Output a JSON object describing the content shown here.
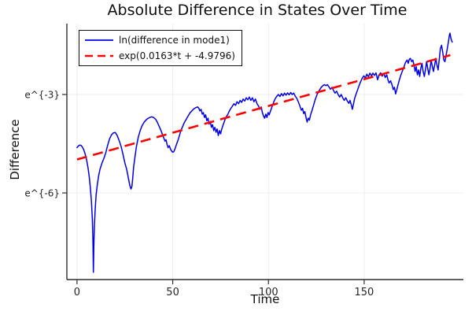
{
  "chart_data": {
    "type": "line",
    "title": "Absolute Difference in States Over Time",
    "xlabel": "Time",
    "ylabel": "Difference",
    "xlim": [
      -5.3,
      201.8
    ],
    "ylim": [
      -8.64,
      -0.84
    ],
    "x_ticks": [
      {
        "value": 0,
        "label": "0"
      },
      {
        "value": 50,
        "label": "50"
      },
      {
        "value": 100,
        "label": "100"
      },
      {
        "value": 150,
        "label": "150"
      }
    ],
    "y_ticks": [
      {
        "value": -3,
        "label": "e^{-3}"
      },
      {
        "value": -6,
        "label": "e^{-6}"
      }
    ],
    "grid": true,
    "legend_position": "top-left",
    "colors": {
      "grid": "#ededed",
      "axis": "#2f2f2f",
      "text": "#262626"
    },
    "series": [
      {
        "name": "ln(difference in mode1)",
        "color": "#0000ee",
        "style": "solid",
        "points": [
          [
            0,
            -4.62
          ],
          [
            0.7,
            -4.57
          ],
          [
            1.4,
            -4.54
          ],
          [
            2.1,
            -4.55
          ],
          [
            2.8,
            -4.6
          ],
          [
            3.5,
            -4.68
          ],
          [
            4.2,
            -4.8
          ],
          [
            5,
            -5.0
          ],
          [
            5.7,
            -5.22
          ],
          [
            6.4,
            -5.52
          ],
          [
            7,
            -5.85
          ],
          [
            7.5,
            -6.25
          ],
          [
            8,
            -6.8
          ],
          [
            8.3,
            -7.4
          ],
          [
            8.55,
            -8.42
          ],
          [
            8.8,
            -7.6
          ],
          [
            9.1,
            -7.0
          ],
          [
            9.5,
            -6.5
          ],
          [
            10,
            -6.05
          ],
          [
            10.6,
            -5.75
          ],
          [
            11.2,
            -5.5
          ],
          [
            12,
            -5.28
          ],
          [
            13,
            -5.1
          ],
          [
            14,
            -4.95
          ],
          [
            15,
            -4.78
          ],
          [
            16,
            -4.55
          ],
          [
            17,
            -4.35
          ],
          [
            18,
            -4.23
          ],
          [
            19,
            -4.17
          ],
          [
            20,
            -4.16
          ],
          [
            21,
            -4.25
          ],
          [
            22,
            -4.4
          ],
          [
            23,
            -4.58
          ],
          [
            24,
            -4.82
          ],
          [
            25,
            -5.08
          ],
          [
            26,
            -5.3
          ],
          [
            27,
            -5.6
          ],
          [
            27.6,
            -5.78
          ],
          [
            28.2,
            -5.88
          ],
          [
            28.7,
            -5.8
          ],
          [
            29.1,
            -5.55
          ],
          [
            29.6,
            -5.2
          ],
          [
            30.3,
            -4.9
          ],
          [
            31,
            -4.6
          ],
          [
            32,
            -4.3
          ],
          [
            33,
            -4.1
          ],
          [
            34,
            -3.95
          ],
          [
            35,
            -3.85
          ],
          [
            36,
            -3.78
          ],
          [
            37,
            -3.73
          ],
          [
            38,
            -3.7
          ],
          [
            39,
            -3.68
          ],
          [
            40,
            -3.7
          ],
          [
            41,
            -3.75
          ],
          [
            42,
            -3.85
          ],
          [
            43,
            -3.98
          ],
          [
            44,
            -4.12
          ],
          [
            45,
            -4.28
          ],
          [
            46,
            -4.42
          ],
          [
            46.5,
            -4.38
          ],
          [
            47,
            -4.52
          ],
          [
            47.6,
            -4.62
          ],
          [
            48.2,
            -4.56
          ],
          [
            48.8,
            -4.66
          ],
          [
            49.4,
            -4.72
          ],
          [
            50,
            -4.76
          ],
          [
            50.6,
            -4.74
          ],
          [
            51.2,
            -4.65
          ],
          [
            52,
            -4.52
          ],
          [
            53,
            -4.35
          ],
          [
            54,
            -4.15
          ],
          [
            55,
            -4.0
          ],
          [
            56,
            -3.86
          ],
          [
            57,
            -3.76
          ],
          [
            58,
            -3.66
          ],
          [
            59,
            -3.56
          ],
          [
            60,
            -3.5
          ],
          [
            61,
            -3.44
          ],
          [
            62,
            -3.4
          ],
          [
            63,
            -3.38
          ],
          [
            63.6,
            -3.42
          ],
          [
            64.2,
            -3.5
          ],
          [
            64.8,
            -3.45
          ],
          [
            65.4,
            -3.6
          ],
          [
            66,
            -3.55
          ],
          [
            66.6,
            -3.7
          ],
          [
            67.2,
            -3.62
          ],
          [
            67.8,
            -3.8
          ],
          [
            68.4,
            -3.72
          ],
          [
            69,
            -3.9
          ],
          [
            69.6,
            -3.82
          ],
          [
            70.2,
            -4.0
          ],
          [
            70.8,
            -3.92
          ],
          [
            71.4,
            -4.1
          ],
          [
            72,
            -4.0
          ],
          [
            72.6,
            -4.15
          ],
          [
            73.2,
            -4.05
          ],
          [
            73.8,
            -4.25
          ],
          [
            74.4,
            -4.1
          ],
          [
            75,
            -4.2
          ],
          [
            75.6,
            -4.05
          ],
          [
            76.2,
            -3.95
          ],
          [
            76.8,
            -3.85
          ],
          [
            77.4,
            -3.75
          ],
          [
            78,
            -3.68
          ],
          [
            78.8,
            -3.6
          ],
          [
            79.6,
            -3.5
          ],
          [
            80.4,
            -3.42
          ],
          [
            81.2,
            -3.35
          ],
          [
            82,
            -3.28
          ],
          [
            82.8,
            -3.33
          ],
          [
            83.6,
            -3.22
          ],
          [
            84.4,
            -3.28
          ],
          [
            85.2,
            -3.18
          ],
          [
            86,
            -3.24
          ],
          [
            86.8,
            -3.14
          ],
          [
            87.6,
            -3.2
          ],
          [
            88.4,
            -3.1
          ],
          [
            89.2,
            -3.16
          ],
          [
            90,
            -3.08
          ],
          [
            90.8,
            -3.18
          ],
          [
            91.6,
            -3.1
          ],
          [
            92.4,
            -3.22
          ],
          [
            93.2,
            -3.14
          ],
          [
            94,
            -3.28
          ],
          [
            94.8,
            -3.35
          ],
          [
            95.6,
            -3.45
          ],
          [
            96.2,
            -3.38
          ],
          [
            96.8,
            -3.55
          ],
          [
            97.4,
            -3.65
          ],
          [
            98,
            -3.72
          ],
          [
            98.6,
            -3.6
          ],
          [
            99.2,
            -3.7
          ],
          [
            99.8,
            -3.55
          ],
          [
            100.4,
            -3.62
          ],
          [
            101.2,
            -3.48
          ],
          [
            102,
            -3.35
          ],
          [
            102.8,
            -3.22
          ],
          [
            103.6,
            -3.12
          ],
          [
            104.4,
            -3.05
          ],
          [
            105.2,
            -3.0
          ],
          [
            106,
            -3.06
          ],
          [
            106.8,
            -2.97
          ],
          [
            107.6,
            -3.04
          ],
          [
            108.4,
            -2.96
          ],
          [
            109.2,
            -3.02
          ],
          [
            110,
            -2.95
          ],
          [
            110.8,
            -3.01
          ],
          [
            111.6,
            -2.94
          ],
          [
            112.4,
            -3.0
          ],
          [
            113.2,
            -2.96
          ],
          [
            114,
            -3.05
          ],
          [
            114.8,
            -3.12
          ],
          [
            115.6,
            -3.22
          ],
          [
            116.4,
            -3.35
          ],
          [
            117.2,
            -3.48
          ],
          [
            117.8,
            -3.42
          ],
          [
            118.4,
            -3.58
          ],
          [
            119,
            -3.52
          ],
          [
            119.6,
            -3.7
          ],
          [
            120.2,
            -3.84
          ],
          [
            120.8,
            -3.72
          ],
          [
            121.4,
            -3.78
          ],
          [
            122,
            -3.62
          ],
          [
            122.8,
            -3.48
          ],
          [
            123.6,
            -3.32
          ],
          [
            124.4,
            -3.16
          ],
          [
            125.2,
            -3.03
          ],
          [
            126,
            -2.93
          ],
          [
            126.8,
            -2.85
          ],
          [
            127.6,
            -2.78
          ],
          [
            128.4,
            -2.73
          ],
          [
            129.2,
            -2.7
          ],
          [
            130,
            -2.73
          ],
          [
            130.8,
            -2.7
          ],
          [
            131.6,
            -2.77
          ],
          [
            132.4,
            -2.84
          ],
          [
            133.2,
            -2.78
          ],
          [
            134,
            -2.88
          ],
          [
            134.8,
            -2.96
          ],
          [
            135.6,
            -2.9
          ],
          [
            136.4,
            -3.0
          ],
          [
            137.2,
            -3.08
          ],
          [
            138,
            -3.0
          ],
          [
            138.8,
            -3.1
          ],
          [
            139.6,
            -3.18
          ],
          [
            140.4,
            -3.1
          ],
          [
            141.2,
            -3.2
          ],
          [
            142,
            -3.27
          ],
          [
            142.6,
            -3.18
          ],
          [
            143.2,
            -3.3
          ],
          [
            143.8,
            -3.45
          ],
          [
            144.4,
            -3.3
          ],
          [
            145,
            -3.12
          ],
          [
            145.8,
            -2.98
          ],
          [
            146.6,
            -2.85
          ],
          [
            147.4,
            -2.72
          ],
          [
            148.2,
            -2.6
          ],
          [
            149,
            -2.5
          ],
          [
            149.8,
            -2.43
          ],
          [
            150.6,
            -2.5
          ],
          [
            151.4,
            -2.38
          ],
          [
            152.2,
            -2.46
          ],
          [
            153,
            -2.35
          ],
          [
            153.8,
            -2.43
          ],
          [
            154.6,
            -2.35
          ],
          [
            155.4,
            -2.42
          ],
          [
            156.2,
            -2.34
          ],
          [
            157,
            -2.55
          ],
          [
            157.8,
            -2.4
          ],
          [
            158.6,
            -2.34
          ],
          [
            159.4,
            -2.44
          ],
          [
            160.2,
            -2.36
          ],
          [
            161,
            -2.48
          ],
          [
            161.8,
            -2.4
          ],
          [
            162.4,
            -2.55
          ],
          [
            163,
            -2.65
          ],
          [
            163.8,
            -2.58
          ],
          [
            164.6,
            -2.72
          ],
          [
            165.2,
            -2.85
          ],
          [
            165.8,
            -2.78
          ],
          [
            166.4,
            -2.98
          ],
          [
            167,
            -2.86
          ],
          [
            167.6,
            -2.72
          ],
          [
            168.4,
            -2.55
          ],
          [
            169.2,
            -2.4
          ],
          [
            170,
            -2.28
          ],
          [
            170.8,
            -2.15
          ],
          [
            171.6,
            -2.02
          ],
          [
            172.4,
            -1.95
          ],
          [
            173,
            -2.05
          ],
          [
            173.6,
            -1.92
          ],
          [
            174.2,
            -1.9
          ],
          [
            174.8,
            -2.0
          ],
          [
            175.4,
            -1.95
          ],
          [
            176,
            -2.1
          ],
          [
            176.6,
            -2.3
          ],
          [
            177.2,
            -2.15
          ],
          [
            177.8,
            -2.4
          ],
          [
            178.4,
            -2.25
          ],
          [
            179,
            -2.45
          ],
          [
            179.6,
            -2.2
          ],
          [
            180.2,
            -2.05
          ],
          [
            180.8,
            -2.3
          ],
          [
            181.4,
            -2.45
          ],
          [
            182,
            -2.25
          ],
          [
            182.6,
            -2.0
          ],
          [
            183.2,
            -2.2
          ],
          [
            183.8,
            -2.4
          ],
          [
            184.4,
            -2.2
          ],
          [
            185,
            -1.95
          ],
          [
            185.6,
            -2.15
          ],
          [
            186.2,
            -2.3
          ],
          [
            186.8,
            -2.1
          ],
          [
            187.4,
            -1.9
          ],
          [
            188,
            -2.1
          ],
          [
            188.6,
            -2.25
          ],
          [
            189.2,
            -1.95
          ],
          [
            189.8,
            -1.6
          ],
          [
            190.4,
            -1.5
          ],
          [
            191,
            -1.7
          ],
          [
            191.6,
            -1.95
          ],
          [
            192.2,
            -2.0
          ],
          [
            192.8,
            -1.8
          ],
          [
            193.4,
            -1.6
          ],
          [
            194,
            -1.4
          ],
          [
            194.5,
            -1.2
          ],
          [
            194.8,
            -1.13
          ],
          [
            195.2,
            -1.25
          ],
          [
            195.6,
            -1.35
          ],
          [
            196,
            -1.4
          ]
        ]
      },
      {
        "name": "exp(0.0163*t + -4.9796)",
        "color": "#ff0000",
        "style": "dashed",
        "fit": {
          "slope": 0.0163,
          "intercept": -4.9796,
          "t_range": [
            0,
            195
          ]
        }
      }
    ]
  }
}
